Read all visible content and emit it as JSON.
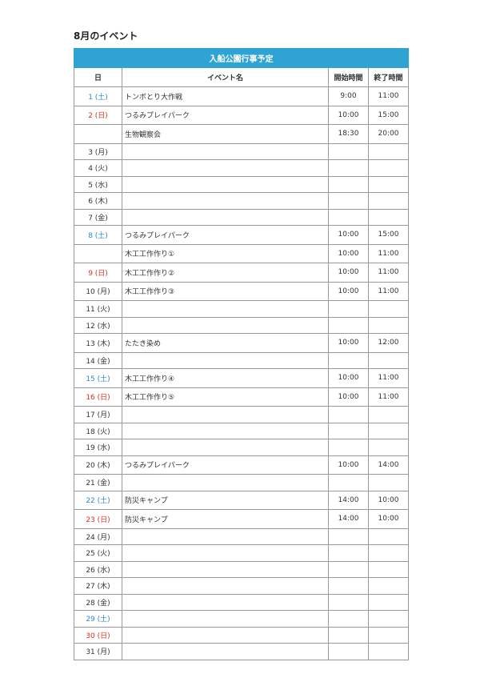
{
  "page_title": "8月のイベント",
  "table": {
    "title": "入船公園行事予定",
    "headers": [
      "日",
      "イベント名",
      "開始時間",
      "終了時間"
    ],
    "rows": [
      {
        "day": "1 (土)",
        "color": "#2a86c8",
        "event": "トンボとり大作戦",
        "start": "9:00",
        "end": "11:00"
      },
      {
        "day": "2 (日)",
        "color": "#d9321e",
        "event": "つるみプレイパーク",
        "start": "10:00",
        "end": "15:00"
      },
      {
        "event": "生物観察会",
        "start": "18:30",
        "end": "20:00"
      },
      {
        "day": "3 (月)"
      },
      {
        "day": "4 (火)"
      },
      {
        "day": "5 (水)"
      },
      {
        "day": "6 (木)"
      },
      {
        "day": "7 (金)"
      },
      {
        "day": "8 (土)",
        "color": "#2a86c8",
        "event": "つるみプレイパーク",
        "start": "10:00",
        "end": "15:00"
      },
      {
        "event": "木工工作作り①",
        "start": "10:00",
        "end": "11:00"
      },
      {
        "day": "9 (日)",
        "color": "#d9321e",
        "event": "木工工作作り②",
        "start": "10:00",
        "end": "11:00"
      },
      {
        "day": "10 (月)",
        "event": "木工工作作り③",
        "start": "10:00",
        "end": "11:00"
      },
      {
        "day": "11 (火)"
      },
      {
        "day": "12 (水)"
      },
      {
        "day": "13 (木)",
        "event": "たたき染め",
        "start": "10:00",
        "end": "12:00"
      },
      {
        "day": "14 (金)"
      },
      {
        "day": "15 (土)",
        "color": "#2a86c8",
        "event": "木工工作作り④",
        "start": "10:00",
        "end": "11:00"
      },
      {
        "day": "16 (日)",
        "color": "#d9321e",
        "event": "木工工作作り⑤",
        "start": "10:00",
        "end": "11:00"
      },
      {
        "day": "17 (月)"
      },
      {
        "day": "18 (火)"
      },
      {
        "day": "19 (水)"
      },
      {
        "day": "20 (木)",
        "event": "つるみプレイパーク",
        "start": "10:00",
        "end": "14:00"
      },
      {
        "day": "21 (金)"
      },
      {
        "day": "22 (土)",
        "color": "#2a86c8",
        "event": "防災キャンプ",
        "start": "14:00",
        "end": "10:00"
      },
      {
        "day": "23 (日)",
        "color": "#d9321e",
        "event": "防災キャンプ",
        "start": "14:00",
        "end": "10:00"
      },
      {
        "day": "24 (月)"
      },
      {
        "day": "25 (火)"
      },
      {
        "day": "26 (水)"
      },
      {
        "day": "27 (木)"
      },
      {
        "day": "28 (金)"
      },
      {
        "day": "29 (土)",
        "color": "#2a86c8"
      },
      {
        "day": "30 (日)",
        "color": "#d9321e"
      },
      {
        "day": "31 (月)"
      }
    ]
  }
}
